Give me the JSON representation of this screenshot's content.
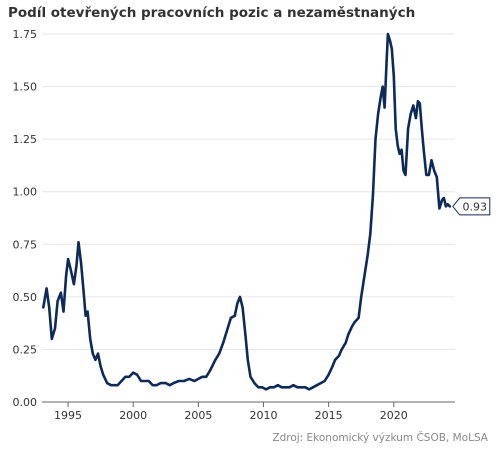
{
  "title": "Podíl otevřených pracovních pozic a nezaměstnaných",
  "source": "Zdroj: Ekonomický výzkum ČSOB, MoLSA",
  "colors": {
    "line": "#0d2a5a",
    "grid": "#e6e6e6",
    "axis": "#666666",
    "label_border": "#0d2a5a"
  },
  "chart_data": {
    "type": "line",
    "title": "Podíl otevřených pracovních pozic a nezaměstnaných",
    "xlim": [
      1993.0,
      2024.7
    ],
    "ylim": [
      0,
      1.75
    ],
    "x_ticks": [
      1995,
      2000,
      2005,
      2010,
      2015,
      2020
    ],
    "x_tick_labels": [
      "1995",
      "2000",
      "2005",
      "2010",
      "2015",
      "2020"
    ],
    "y_ticks": [
      0,
      0.25,
      0.5,
      0.75,
      1.0,
      1.25,
      1.5,
      1.75
    ],
    "y_tick_labels": [
      "0.00",
      "0.25",
      "0.50",
      "0.75",
      "1.00",
      "1.25",
      "1.50",
      "1.75"
    ],
    "grid": "horizontal",
    "last_value_label": "0.93",
    "series": [
      {
        "x": [
          1993.1,
          1993.35,
          1993.55,
          1993.75,
          1994.0,
          1994.2,
          1994.45,
          1994.65,
          1994.85,
          1995.0,
          1995.2,
          1995.45,
          1995.65,
          1995.8,
          1996.0,
          1996.2,
          1996.35,
          1996.5,
          1996.7,
          1996.9,
          1997.1,
          1997.3,
          1997.5,
          1997.7,
          1998.0,
          1998.3,
          1998.6,
          1998.8,
          1999.1,
          1999.4,
          1999.7,
          2000.0,
          2000.3,
          2000.6,
          2000.9,
          2001.2,
          2001.5,
          2001.8,
          2002.1,
          2002.5,
          2002.8,
          2003.1,
          2003.5,
          2003.9,
          2004.3,
          2004.7,
          2005.0,
          2005.3,
          2005.6,
          2005.9,
          2006.3,
          2006.6,
          2006.9,
          2007.2,
          2007.5,
          2007.8,
          2008.0,
          2008.2,
          2008.4,
          2008.6,
          2008.8,
          2009.0,
          2009.3,
          2009.6,
          2009.9,
          2010.2,
          2010.5,
          2010.8,
          2011.1,
          2011.4,
          2011.7,
          2012.0,
          2012.3,
          2012.6,
          2012.9,
          2013.2,
          2013.5,
          2013.8,
          2014.1,
          2014.4,
          2014.7,
          2015.0,
          2015.3,
          2015.5,
          2015.8,
          2016.0,
          2016.3,
          2016.5,
          2016.8,
          2017.0,
          2017.3,
          2017.5,
          2017.8,
          2018.0,
          2018.2,
          2018.4,
          2018.6,
          2018.8,
          2019.0,
          2019.15,
          2019.3,
          2019.45,
          2019.55,
          2019.7,
          2019.85,
          2020.0,
          2020.15,
          2020.3,
          2020.45,
          2020.6,
          2020.75,
          2020.9,
          2021.1,
          2021.3,
          2021.5,
          2021.7,
          2021.85,
          2022.0,
          2022.15,
          2022.3,
          2022.5,
          2022.7,
          2022.9,
          2023.1,
          2023.3,
          2023.5,
          2023.7,
          2023.85,
          2024.0,
          2024.15,
          2024.3
        ],
        "values": [
          0.45,
          0.54,
          0.45,
          0.3,
          0.35,
          0.48,
          0.52,
          0.43,
          0.6,
          0.68,
          0.63,
          0.56,
          0.65,
          0.76,
          0.66,
          0.52,
          0.41,
          0.43,
          0.3,
          0.23,
          0.2,
          0.23,
          0.17,
          0.13,
          0.09,
          0.08,
          0.08,
          0.08,
          0.1,
          0.12,
          0.12,
          0.14,
          0.13,
          0.1,
          0.1,
          0.1,
          0.08,
          0.08,
          0.09,
          0.09,
          0.08,
          0.09,
          0.1,
          0.1,
          0.11,
          0.1,
          0.11,
          0.12,
          0.12,
          0.15,
          0.2,
          0.23,
          0.28,
          0.34,
          0.4,
          0.41,
          0.47,
          0.5,
          0.45,
          0.33,
          0.2,
          0.12,
          0.09,
          0.07,
          0.07,
          0.06,
          0.07,
          0.07,
          0.08,
          0.07,
          0.07,
          0.07,
          0.08,
          0.07,
          0.07,
          0.07,
          0.06,
          0.07,
          0.08,
          0.09,
          0.1,
          0.13,
          0.17,
          0.2,
          0.22,
          0.25,
          0.28,
          0.32,
          0.36,
          0.38,
          0.4,
          0.5,
          0.62,
          0.7,
          0.8,
          0.98,
          1.25,
          1.37,
          1.45,
          1.5,
          1.4,
          1.62,
          1.75,
          1.72,
          1.68,
          1.55,
          1.3,
          1.22,
          1.18,
          1.2,
          1.1,
          1.08,
          1.3,
          1.37,
          1.41,
          1.35,
          1.43,
          1.42,
          1.3,
          1.2,
          1.08,
          1.08,
          1.15,
          1.1,
          1.07,
          0.92,
          0.96,
          0.97,
          0.93,
          0.94,
          0.93
        ]
      }
    ]
  }
}
